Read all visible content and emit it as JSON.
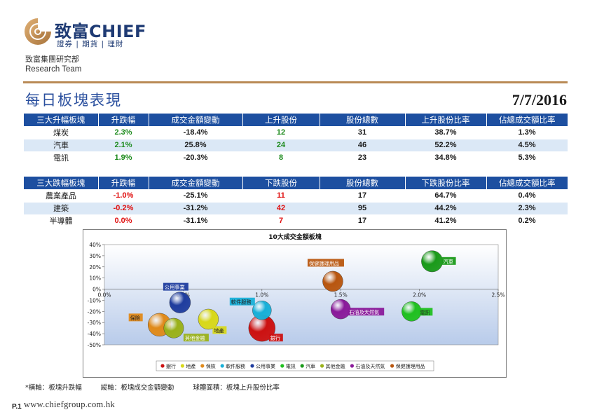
{
  "brand": {
    "name": "致富CHIEF",
    "tagline": "證券 | 期貨 | 理財",
    "dept_zh": "致富集團研究部",
    "dept_en": "Research Team",
    "url": "www.chiefgroup.com.hk",
    "page": "P.1"
  },
  "report": {
    "title": "每日板塊表現",
    "date": "7/7/2016"
  },
  "colors": {
    "header": "#1d4fa0",
    "row_alt": "#dbe8f6",
    "up": "#1c8a1c",
    "down": "#e01010",
    "rule": "#b98a55"
  },
  "top_gainers": {
    "headers": [
      "三大升幅板塊",
      "升跌幅",
      "成交金額變動",
      "上升股份",
      "股份總數",
      "上升股份比率",
      "佔總成交額比率"
    ],
    "rows": [
      [
        "煤炭",
        "2.3%",
        "-18.4%",
        "12",
        "31",
        "38.7%",
        "1.3%"
      ],
      [
        "汽車",
        "2.1%",
        "25.8%",
        "24",
        "46",
        "52.2%",
        "4.5%"
      ],
      [
        "電訊",
        "1.9%",
        "-20.3%",
        "8",
        "23",
        "34.8%",
        "5.3%"
      ]
    ]
  },
  "top_losers": {
    "headers": [
      "三大跌幅板塊",
      "升跌幅",
      "成交金額變動",
      "下跌股份",
      "股份總數",
      "下跌股份比率",
      "佔總成交額比率"
    ],
    "rows": [
      [
        "農業產品",
        "-1.0%",
        "-25.1%",
        "11",
        "17",
        "64.7%",
        "0.4%"
      ],
      [
        "建築",
        "-0.2%",
        "-31.2%",
        "42",
        "95",
        "44.2%",
        "2.3%"
      ],
      [
        "半導體",
        "0.0%",
        "-31.1%",
        "7",
        "17",
        "41.2%",
        "0.2%"
      ]
    ]
  },
  "chart_data": {
    "type": "bubble",
    "title": "10大成交金額板塊",
    "xlim": [
      0,
      2.5
    ],
    "ylim": [
      -50,
      40
    ],
    "x_ticks": [
      "0.0%",
      "0.5%",
      "1.0%",
      "1.5%",
      "2.0%",
      "2.5%"
    ],
    "y_ticks": [
      "40%",
      "30%",
      "20%",
      "10%",
      "0%",
      "-10%",
      "-20%",
      "-30%",
      "-40%",
      "-50%"
    ],
    "legend_position": "bottom",
    "series": [
      {
        "name": "銀行",
        "x": 1.0,
        "y": -35,
        "size": 1.0,
        "color": "#cc1111"
      },
      {
        "name": "地產",
        "x": 0.66,
        "y": -27,
        "size": 0.55,
        "color": "#d8d81a"
      },
      {
        "name": "保險",
        "x": 0.35,
        "y": -32,
        "size": 0.75,
        "color": "#e08a1a"
      },
      {
        "name": "軟件服務",
        "x": 1.0,
        "y": -19,
        "size": 0.45,
        "color": "#18b0d8"
      },
      {
        "name": "公用事業",
        "x": 0.48,
        "y": -12,
        "size": 0.6,
        "color": "#1f3d9e"
      },
      {
        "name": "電訊",
        "x": 1.95,
        "y": -20,
        "size": 0.5,
        "color": "#20c020"
      },
      {
        "name": "汽車",
        "x": 2.08,
        "y": 25,
        "size": 0.62,
        "color": "#1a9a1a"
      },
      {
        "name": "其他金融",
        "x": 0.44,
        "y": -35,
        "size": 0.52,
        "color": "#9ab11a"
      },
      {
        "name": "石油及天然氣",
        "x": 1.5,
        "y": -18,
        "size": 0.5,
        "color": "#8a1a9a"
      },
      {
        "name": "保健護理用品",
        "x": 1.45,
        "y": 7,
        "size": 0.55,
        "color": "#b8560f"
      }
    ]
  },
  "footnote": {
    "x_axis": "*橫軸：板塊升跌幅",
    "y_axis": "縱軸：板塊成交金額變動",
    "bubble": "球體面積：板塊上升股份比率"
  }
}
